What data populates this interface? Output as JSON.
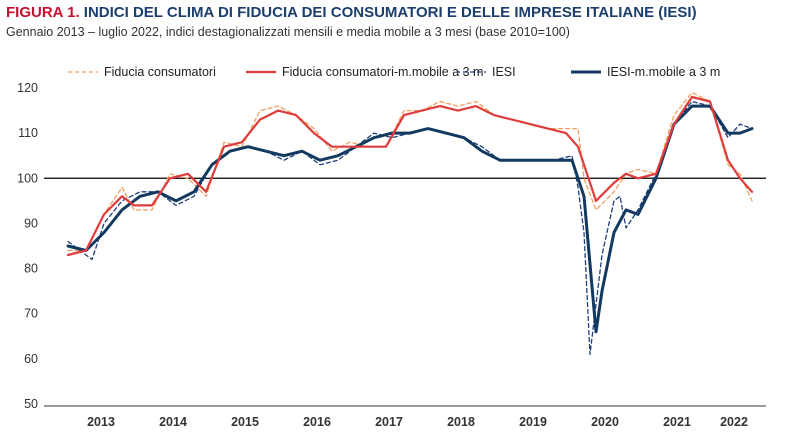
{
  "header": {
    "figure_label": "FIGURA 1.",
    "title": "INDICI DEL CLIMA DI FIDUCIA DEI CONSUMATORI E DELLE IMPRESE ITALIANE (IESI)",
    "subtitle": "Gennaio 2013 – luglio 2022, indici destagionalizzati mensili e media mobile a 3 mesi (base 2010=100)"
  },
  "colors": {
    "title": "#1c3f6e",
    "figure_label": "#c8102e",
    "consumer_monthly": "#f0a060",
    "consumer_ma": "#e03c3c",
    "iesi_monthly": "#1f3f7a",
    "iesi_ma": "#12395f"
  },
  "chart_data": {
    "type": "line",
    "title": "INDICI DEL CLIMA DI FIDUCIA DEI CONSUMATORI E DELLE IMPRESE ITALIANE (IESI)",
    "subtitle": "Gennaio 2013 – luglio 2022, indici destagionalizzati mensili e media mobile a 3 mesi (base 2010=100)",
    "x_start": "2013-01",
    "x_end": "2022-07",
    "ylim": [
      50,
      120
    ],
    "yticks": [
      50,
      60,
      70,
      80,
      90,
      100,
      110,
      120
    ],
    "xtick_labels": [
      "2013",
      "2014",
      "2015",
      "2016",
      "2017",
      "2018",
      "2019",
      "2020",
      "2021",
      "2022"
    ],
    "reference_line": 100,
    "legend_position": "top",
    "series": [
      {
        "name": "Fiducia consumatori",
        "style": "dashed",
        "points": [
          [
            "2013-01",
            84
          ],
          [
            "2013-04",
            84
          ],
          [
            "2013-07",
            92
          ],
          [
            "2013-10",
            98
          ],
          [
            "2013-12",
            93
          ],
          [
            "2014-03",
            93
          ],
          [
            "2014-06",
            101
          ],
          [
            "2014-09",
            100
          ],
          [
            "2014-12",
            96
          ],
          [
            "2015-03",
            108
          ],
          [
            "2015-06",
            107
          ],
          [
            "2015-09",
            115
          ],
          [
            "2015-12",
            116
          ],
          [
            "2016-03",
            114
          ],
          [
            "2016-06",
            111
          ],
          [
            "2016-09",
            106
          ],
          [
            "2016-12",
            108
          ],
          [
            "2017-03",
            107
          ],
          [
            "2017-06",
            107
          ],
          [
            "2017-09",
            115
          ],
          [
            "2017-12",
            115
          ],
          [
            "2018-03",
            117
          ],
          [
            "2018-06",
            116
          ],
          [
            "2018-09",
            117
          ],
          [
            "2018-12",
            114
          ],
          [
            "2019-03",
            113
          ],
          [
            "2019-06",
            112
          ],
          [
            "2019-09",
            111
          ],
          [
            "2019-12",
            111
          ],
          [
            "2020-02",
            111
          ],
          [
            "2020-03",
            100
          ],
          [
            "2020-05",
            93
          ],
          [
            "2020-08",
            97
          ],
          [
            "2020-10",
            101
          ],
          [
            "2020-12",
            102
          ],
          [
            "2021-03",
            101
          ],
          [
            "2021-06",
            114
          ],
          [
            "2021-09",
            119
          ],
          [
            "2021-12",
            117
          ],
          [
            "2022-03",
            103
          ],
          [
            "2022-05",
            101
          ],
          [
            "2022-07",
            95
          ]
        ]
      },
      {
        "name": "Fiducia consumatori-m.mobile a 3 m",
        "style": "solid",
        "points": [
          [
            "2013-01",
            83
          ],
          [
            "2013-04",
            84
          ],
          [
            "2013-07",
            92
          ],
          [
            "2013-10",
            96
          ],
          [
            "2013-12",
            94
          ],
          [
            "2014-03",
            94
          ],
          [
            "2014-06",
            100
          ],
          [
            "2014-09",
            101
          ],
          [
            "2014-12",
            97
          ],
          [
            "2015-03",
            107
          ],
          [
            "2015-06",
            108
          ],
          [
            "2015-09",
            113
          ],
          [
            "2015-12",
            115
          ],
          [
            "2016-03",
            114
          ],
          [
            "2016-06",
            110
          ],
          [
            "2016-09",
            107
          ],
          [
            "2016-12",
            107
          ],
          [
            "2017-03",
            107
          ],
          [
            "2017-06",
            107
          ],
          [
            "2017-09",
            114
          ],
          [
            "2017-12",
            115
          ],
          [
            "2018-03",
            116
          ],
          [
            "2018-06",
            115
          ],
          [
            "2018-09",
            116
          ],
          [
            "2018-12",
            114
          ],
          [
            "2019-03",
            113
          ],
          [
            "2019-06",
            112
          ],
          [
            "2019-09",
            111
          ],
          [
            "2019-12",
            110
          ],
          [
            "2020-02",
            107
          ],
          [
            "2020-05",
            95
          ],
          [
            "2020-08",
            99
          ],
          [
            "2020-10",
            101
          ],
          [
            "2020-12",
            100
          ],
          [
            "2021-03",
            101
          ],
          [
            "2021-06",
            112
          ],
          [
            "2021-09",
            118
          ],
          [
            "2021-12",
            117
          ],
          [
            "2022-03",
            104
          ],
          [
            "2022-05",
            100
          ],
          [
            "2022-07",
            97
          ]
        ]
      },
      {
        "name": "IESI",
        "style": "dashed",
        "points": [
          [
            "2013-01",
            86
          ],
          [
            "2013-03",
            84
          ],
          [
            "2013-05",
            82
          ],
          [
            "2013-07",
            90
          ],
          [
            "2013-10",
            95
          ],
          [
            "2014-01",
            97
          ],
          [
            "2014-04",
            97
          ],
          [
            "2014-07",
            94
          ],
          [
            "2014-10",
            96
          ],
          [
            "2015-01",
            103
          ],
          [
            "2015-04",
            106
          ],
          [
            "2015-07",
            107
          ],
          [
            "2015-10",
            106
          ],
          [
            "2016-01",
            104
          ],
          [
            "2016-04",
            106
          ],
          [
            "2016-07",
            103
          ],
          [
            "2016-10",
            104
          ],
          [
            "2017-01",
            107
          ],
          [
            "2017-04",
            110
          ],
          [
            "2017-07",
            109
          ],
          [
            "2017-10",
            110
          ],
          [
            "2018-01",
            111
          ],
          [
            "2018-04",
            110
          ],
          [
            "2018-07",
            109
          ],
          [
            "2018-10",
            107
          ],
          [
            "2019-01",
            104
          ],
          [
            "2019-04",
            104
          ],
          [
            "2019-07",
            104
          ],
          [
            "2019-10",
            104
          ],
          [
            "2020-01",
            105
          ],
          [
            "2020-02",
            98
          ],
          [
            "2020-03",
            88
          ],
          [
            "2020-04",
            61
          ],
          [
            "2020-05",
            72
          ],
          [
            "2020-06",
            83
          ],
          [
            "2020-08",
            95
          ],
          [
            "2020-09",
            96
          ],
          [
            "2020-10",
            89
          ],
          [
            "2020-12",
            93
          ],
          [
            "2021-03",
            101
          ],
          [
            "2021-06",
            112
          ],
          [
            "2021-09",
            117
          ],
          [
            "2021-12",
            116
          ],
          [
            "2022-03",
            109
          ],
          [
            "2022-05",
            112
          ],
          [
            "2022-07",
            111
          ]
        ]
      },
      {
        "name": "IESI-m.mobile a 3 m",
        "style": "solid",
        "points": [
          [
            "2013-01",
            85
          ],
          [
            "2013-04",
            84
          ],
          [
            "2013-07",
            88
          ],
          [
            "2013-10",
            93
          ],
          [
            "2014-01",
            96
          ],
          [
            "2014-04",
            97
          ],
          [
            "2014-07",
            95
          ],
          [
            "2014-10",
            97
          ],
          [
            "2015-01",
            103
          ],
          [
            "2015-04",
            106
          ],
          [
            "2015-07",
            107
          ],
          [
            "2015-10",
            106
          ],
          [
            "2016-01",
            105
          ],
          [
            "2016-04",
            106
          ],
          [
            "2016-07",
            104
          ],
          [
            "2016-10",
            105
          ],
          [
            "2017-01",
            107
          ],
          [
            "2017-04",
            109
          ],
          [
            "2017-07",
            110
          ],
          [
            "2017-10",
            110
          ],
          [
            "2018-01",
            111
          ],
          [
            "2018-04",
            110
          ],
          [
            "2018-07",
            109
          ],
          [
            "2018-10",
            106
          ],
          [
            "2019-01",
            104
          ],
          [
            "2019-04",
            104
          ],
          [
            "2019-07",
            104
          ],
          [
            "2019-10",
            104
          ],
          [
            "2020-01",
            104
          ],
          [
            "2020-02",
            100
          ],
          [
            "2020-03",
            96
          ],
          [
            "2020-05",
            66
          ],
          [
            "2020-06",
            75
          ],
          [
            "2020-08",
            88
          ],
          [
            "2020-10",
            93
          ],
          [
            "2020-12",
            92
          ],
          [
            "2021-03",
            100
          ],
          [
            "2021-06",
            112
          ],
          [
            "2021-09",
            116
          ],
          [
            "2021-12",
            116
          ],
          [
            "2022-03",
            110
          ],
          [
            "2022-05",
            110
          ],
          [
            "2022-07",
            111
          ]
        ]
      }
    ]
  }
}
